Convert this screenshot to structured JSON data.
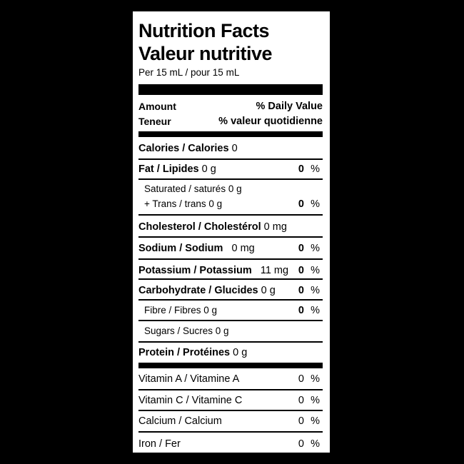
{
  "title_en": "Nutrition Facts",
  "title_fr": "Valeur nutritive",
  "serving": "Per 15 mL / pour 15 mL",
  "header": {
    "amount": "Amount",
    "daily_value": "% Daily Value",
    "teneur": "Teneur",
    "valeur_quotidienne": "% valeur quotidienne"
  },
  "rows": {
    "calories": {
      "label": "Calories / Calories",
      "amount": "0"
    },
    "fat": {
      "label": "Fat / Lipides",
      "amount": "0 g",
      "pct": "0",
      "unit": "%"
    },
    "saturated": {
      "label": "Saturated / saturés 0 g"
    },
    "trans": {
      "label": "+ Trans / trans 0 g",
      "pct": "0",
      "unit": "%"
    },
    "cholesterol": {
      "label": "Cholesterol / Cholestérol",
      "amount": "0 mg"
    },
    "sodium": {
      "label": "Sodium / Sodium",
      "amount": "0 mg",
      "pct": "0",
      "unit": "%"
    },
    "potassium": {
      "label": "Potassium / Potassium",
      "amount": "11 mg",
      "pct": "0",
      "unit": "%"
    },
    "carbohydrate": {
      "label": "Carbohydrate / Glucides",
      "amount": "0 g",
      "pct": "0",
      "unit": "%"
    },
    "fibre": {
      "label": "Fibre / Fibres 0 g",
      "pct": "0",
      "unit": "%"
    },
    "sugars": {
      "label": "Sugars / Sucres 0 g"
    },
    "protein": {
      "label": "Protein / Protéines",
      "amount": "0 g"
    },
    "vitamin_a": {
      "label": "Vitamin A / Vitamine A",
      "pct": "0",
      "unit": "%"
    },
    "vitamin_c": {
      "label": "Vitamin C / Vitamine C",
      "pct": "0",
      "unit": "%"
    },
    "calcium": {
      "label": "Calcium / Calcium",
      "pct": "0",
      "unit": "%"
    },
    "iron": {
      "label": "Iron / Fer",
      "pct": "0",
      "unit": "%"
    }
  }
}
